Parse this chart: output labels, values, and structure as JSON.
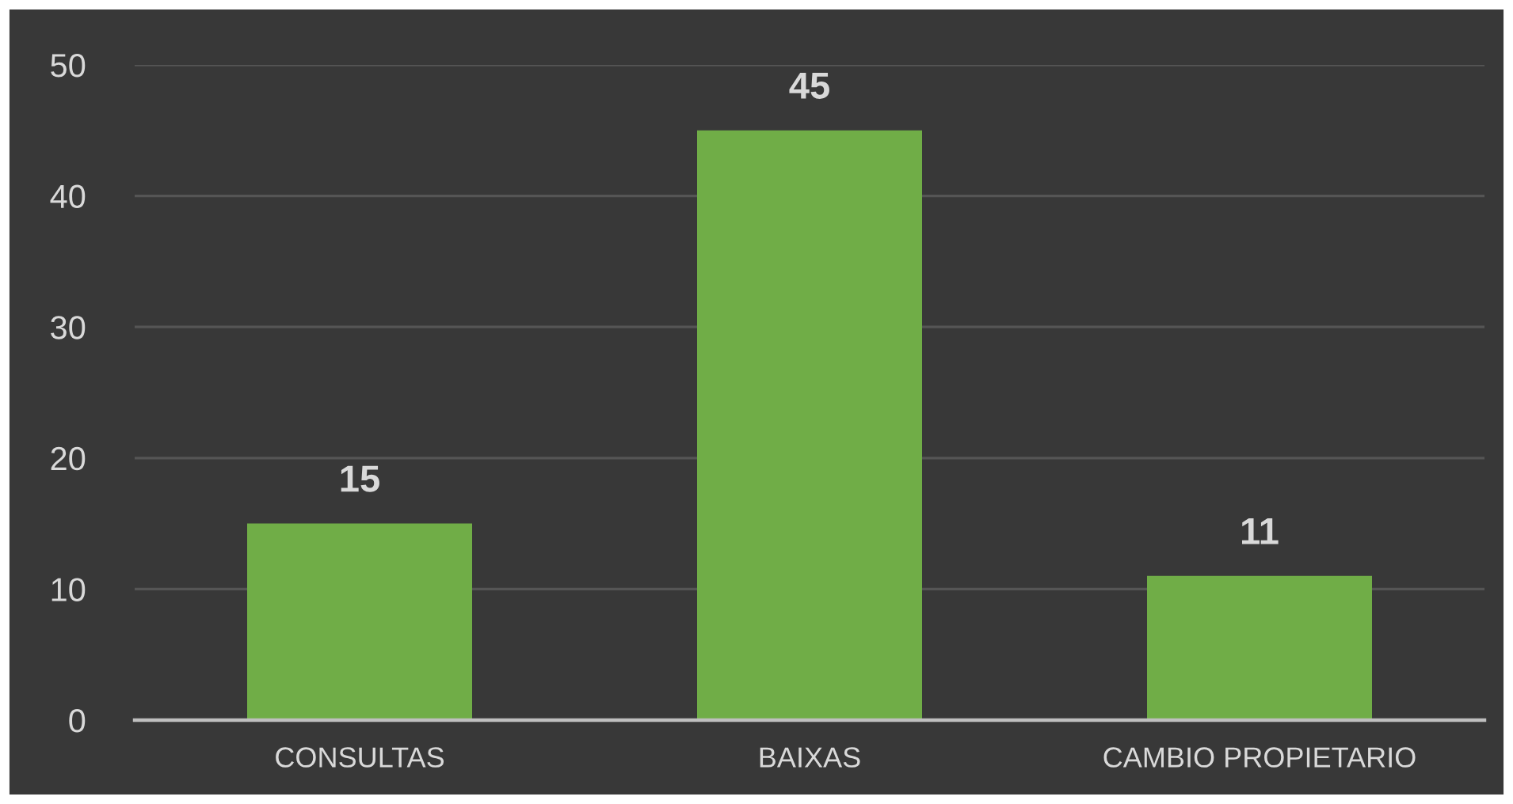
{
  "chart_data": {
    "type": "bar",
    "categories": [
      "CONSULTAS",
      "BAIXAS",
      "CAMBIO PROPIETARIO"
    ],
    "values": [
      15,
      45,
      11
    ],
    "color": "#70ad47",
    "ylim": [
      0,
      50
    ],
    "yticks": [
      0,
      10,
      20,
      30,
      40,
      50
    ],
    "grid": "y",
    "data_labels": true
  }
}
